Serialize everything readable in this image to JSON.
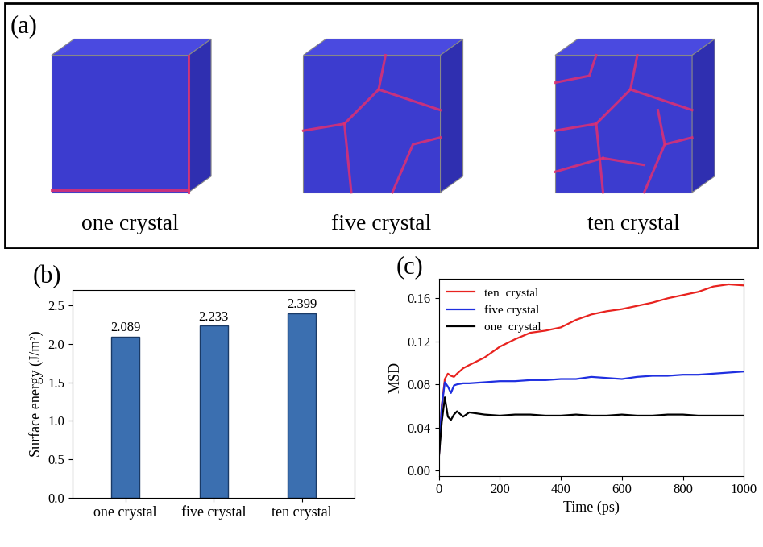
{
  "panel_a": {
    "label": "(a)",
    "images": [
      "one crystal",
      "five crystal",
      "ten crystal"
    ]
  },
  "chart_data": [
    {
      "type": "bar",
      "title": "(b)",
      "categories": [
        "one crystal",
        "five crystal",
        "ten crystal"
      ],
      "values": [
        2.089,
        2.233,
        2.399
      ],
      "color": "#3b6fb0",
      "data_labels": true,
      "y_label": "Surface energy (J/m²)",
      "ylim": [
        0,
        2.7
      ],
      "yticks": [
        {
          "value": 0,
          "label": "0.0"
        },
        {
          "value": 0.5,
          "label": "0.5"
        },
        {
          "value": 1.0,
          "label": "1.0"
        },
        {
          "value": 1.5,
          "label": "1.5"
        },
        {
          "value": 2.0,
          "label": "2.0"
        },
        {
          "value": 2.5,
          "label": "2.5"
        }
      ]
    },
    {
      "type": "line",
      "title": "(c)",
      "x_label": "Time (ps)",
      "y_label": "MSD",
      "legend": "upper left",
      "x": [
        0,
        10,
        20,
        30,
        40,
        50,
        60,
        80,
        100,
        150,
        200,
        250,
        300,
        350,
        400,
        450,
        500,
        550,
        600,
        650,
        700,
        750,
        800,
        850,
        900,
        950,
        1000
      ],
      "series": [
        {
          "name": "ten  crystal",
          "color": "#e8231f",
          "values": [
            0.01,
            0.06,
            0.085,
            0.09,
            0.088,
            0.087,
            0.09,
            0.095,
            0.098,
            0.105,
            0.115,
            0.122,
            0.128,
            0.13,
            0.133,
            0.14,
            0.145,
            0.148,
            0.15,
            0.153,
            0.156,
            0.16,
            0.163,
            0.166,
            0.171,
            0.173,
            0.172
          ]
        },
        {
          "name": "five crystal",
          "color": "#1f2fe0",
          "values": [
            0.01,
            0.06,
            0.082,
            0.078,
            0.072,
            0.079,
            0.08,
            0.081,
            0.081,
            0.082,
            0.083,
            0.083,
            0.084,
            0.084,
            0.085,
            0.085,
            0.087,
            0.086,
            0.085,
            0.087,
            0.088,
            0.088,
            0.089,
            0.089,
            0.09,
            0.091,
            0.092
          ]
        },
        {
          "name": "one  crystal",
          "color": "#000000",
          "values": [
            0.01,
            0.045,
            0.068,
            0.05,
            0.047,
            0.052,
            0.055,
            0.05,
            0.054,
            0.052,
            0.051,
            0.052,
            0.052,
            0.051,
            0.051,
            0.052,
            0.051,
            0.051,
            0.052,
            0.051,
            0.051,
            0.052,
            0.052,
            0.051,
            0.051,
            0.051,
            0.051
          ]
        }
      ],
      "xlim": [
        0,
        1000
      ],
      "xticks": [
        0,
        200,
        400,
        600,
        800,
        1000
      ],
      "ylim": [
        -0.005,
        0.178
      ],
      "yticks": [
        {
          "value": 0,
          "label": "0.00"
        },
        {
          "value": 0.04,
          "label": "0.04"
        },
        {
          "value": 0.08,
          "label": "0.08"
        },
        {
          "value": 0.12,
          "label": "0.12"
        },
        {
          "value": 0.16,
          "label": "0.16"
        }
      ]
    }
  ]
}
